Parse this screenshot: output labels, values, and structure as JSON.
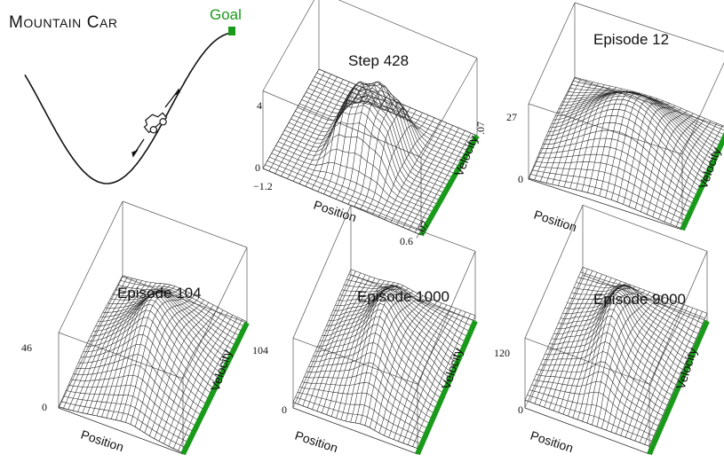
{
  "figure": {
    "title_main": "Mountain Car",
    "goal_label": "Goal",
    "colors": {
      "accent": "#1a9a1a",
      "mesh": "#222222",
      "box": "#555555",
      "text": "#111111"
    }
  },
  "panels": [
    {
      "title": "Step 428",
      "xlabel": "Position",
      "ylabel": "Velocity",
      "z_tick_top": "4",
      "z_tick_bottom": "0",
      "x_tick_left": "−1.2",
      "x_tick_right": "0.6",
      "y_tick_near": "−.07",
      "y_tick_far": ".07"
    },
    {
      "title": "Episode 12",
      "xlabel": "Position",
      "ylabel": "Velocity",
      "z_tick_top": "27",
      "z_tick_bottom": "0"
    },
    {
      "title": "Episode 104",
      "xlabel": "Position",
      "ylabel": "Velocity",
      "z_tick_top": "46",
      "z_tick_bottom": "0"
    },
    {
      "title": "Episode 1000",
      "xlabel": "Position",
      "ylabel": "Velocity",
      "z_tick_top": "104",
      "z_tick_bottom": "0"
    },
    {
      "title": "Episode 9000",
      "xlabel": "Position",
      "ylabel": "Velocity",
      "z_tick_top": "120",
      "z_tick_bottom": "0"
    }
  ]
}
